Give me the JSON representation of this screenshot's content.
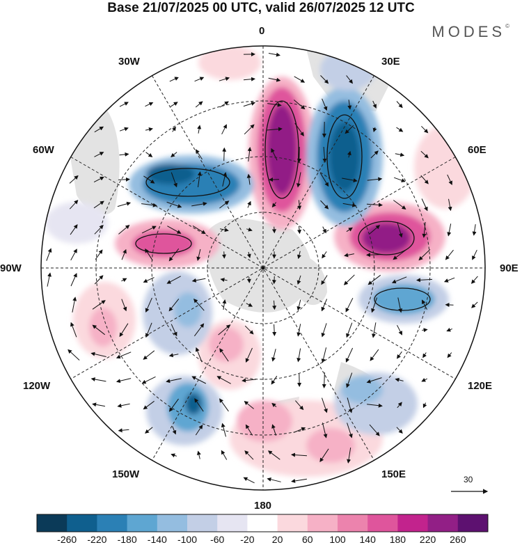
{
  "header": {
    "title": "Base 21/07/2025 00 UTC, valid 26/07/2025 12 UTC",
    "brand": "MODES",
    "brand_mark": "©"
  },
  "map": {
    "projection": "polar-stereographic-south",
    "longitude_labels": {
      "lon_0": "0",
      "lon_30e": "30E",
      "lon_60e": "60E",
      "lon_90e": "90E",
      "lon_120e": "120E",
      "lon_150e": "150E",
      "lon_180": "180",
      "lon_150w": "150W",
      "lon_120w": "120W",
      "lon_90w": "90W",
      "lon_60w": "60W",
      "lon_30w": "30W"
    },
    "reference_vector": "30"
  },
  "colorbar": {
    "colors": [
      "#0b3a58",
      "#0f5f8e",
      "#2b80b5",
      "#5ea6d2",
      "#94bde0",
      "#c3cfe6",
      "#e6e5f2",
      "#ffffff",
      "#fbd9de",
      "#f6b1c6",
      "#ec83ad",
      "#df559c",
      "#c2238d",
      "#921f86",
      "#5d1170"
    ],
    "ticks": [
      "-260",
      "-220",
      "-180",
      "-140",
      "-100",
      "-60",
      "-20",
      "20",
      "60",
      "100",
      "140",
      "180",
      "220",
      "260"
    ]
  }
}
